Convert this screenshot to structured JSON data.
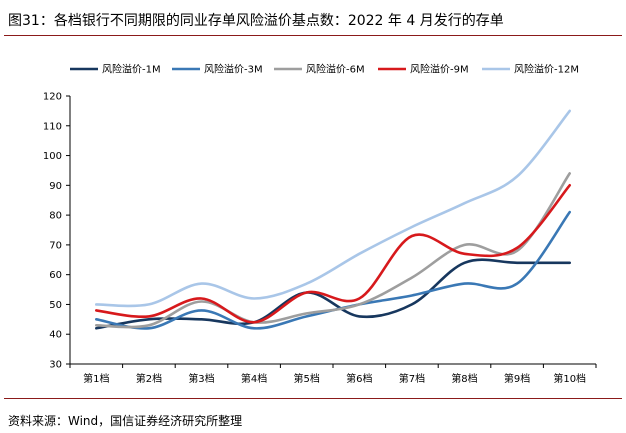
{
  "header": {
    "title": "图31：各档银行不同期限的同业存单风险溢价基点数：2022 年 4 月发行的存单"
  },
  "footer": {
    "source": "资料来源：Wind，国信证券经济研究所整理"
  },
  "chart_data": {
    "type": "line",
    "title": "图31：各档银行不同期限的同业存单风险溢价基点数：2022 年 4 月发行的存单",
    "xlabel": "",
    "ylabel": "",
    "categories": [
      "第1档",
      "第2档",
      "第3档",
      "第4档",
      "第5档",
      "第6档",
      "第7档",
      "第8档",
      "第9档",
      "第10档"
    ],
    "ylim": [
      30,
      120
    ],
    "yticks": [
      30,
      40,
      50,
      60,
      70,
      80,
      90,
      100,
      110,
      120
    ],
    "grid": false,
    "legend_position": "top",
    "smooth": true,
    "series": [
      {
        "name": "风险溢价-1M",
        "color": "#17375e",
        "values": [
          42,
          45,
          45,
          44,
          54,
          46,
          50,
          64,
          64,
          64
        ]
      },
      {
        "name": "风险溢价-3M",
        "color": "#3a78b5",
        "values": [
          45,
          42,
          48,
          42,
          46,
          50,
          53,
          57,
          57,
          81
        ]
      },
      {
        "name": "风险溢价-6M",
        "color": "#9e9e9e",
        "values": [
          43,
          43,
          51,
          44,
          47,
          50,
          59,
          70,
          68,
          94
        ]
      },
      {
        "name": "风险溢价-9M",
        "color": "#d7191c",
        "values": [
          48,
          46,
          52,
          44,
          54,
          52,
          73,
          67,
          69,
          90
        ]
      },
      {
        "name": "风险溢价-12M",
        "color": "#a9c6e8",
        "values": [
          50,
          50,
          57,
          52,
          57,
          67,
          76,
          84,
          93,
          115
        ]
      }
    ]
  }
}
